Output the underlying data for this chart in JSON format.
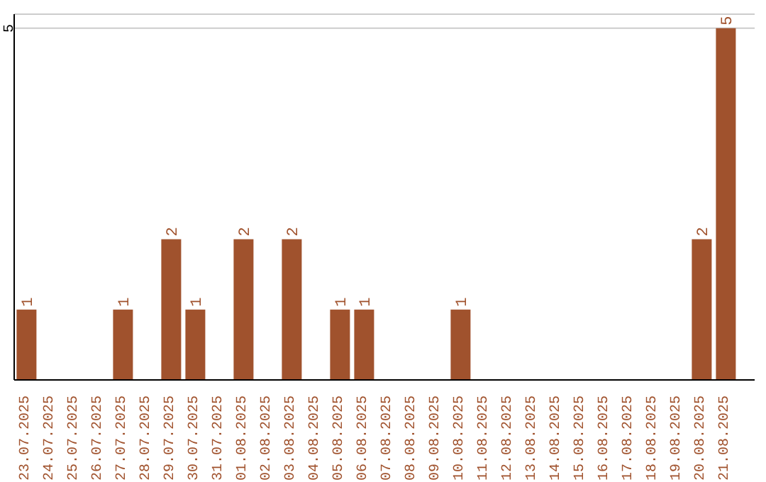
{
  "chart_data": {
    "type": "bar",
    "categories": [
      "23.07.2025",
      "24.07.2025",
      "25.07.2025",
      "26.07.2025",
      "27.07.2025",
      "28.07.2025",
      "29.07.2025",
      "30.07.2025",
      "31.07.2025",
      "01.08.2025",
      "02.08.2025",
      "03.08.2025",
      "04.08.2025",
      "05.08.2025",
      "06.08.2025",
      "07.08.2025",
      "08.08.2025",
      "09.08.2025",
      "10.08.2025",
      "11.08.2025",
      "12.08.2025",
      "13.08.2025",
      "14.08.2025",
      "15.08.2025",
      "16.08.2025",
      "17.08.2025",
      "18.08.2025",
      "19.08.2025",
      "20.08.2025",
      "21.08.2025"
    ],
    "values": [
      1,
      0,
      0,
      0,
      1,
      0,
      2,
      1,
      0,
      2,
      0,
      2,
      0,
      1,
      1,
      0,
      0,
      0,
      1,
      0,
      0,
      0,
      0,
      0,
      0,
      0,
      0,
      0,
      2,
      5
    ],
    "value_labels": [
      "1",
      null,
      null,
      null,
      "1",
      null,
      "2",
      "1",
      null,
      "2",
      null,
      "2",
      null,
      "1",
      "1",
      null,
      null,
      null,
      "1",
      null,
      null,
      null,
      null,
      null,
      null,
      null,
      null,
      null,
      "2",
      "5"
    ],
    "color": "#a0522d",
    "ylim": [
      0,
      5.2
    ],
    "yticks": [
      5
    ],
    "grid": "y"
  }
}
